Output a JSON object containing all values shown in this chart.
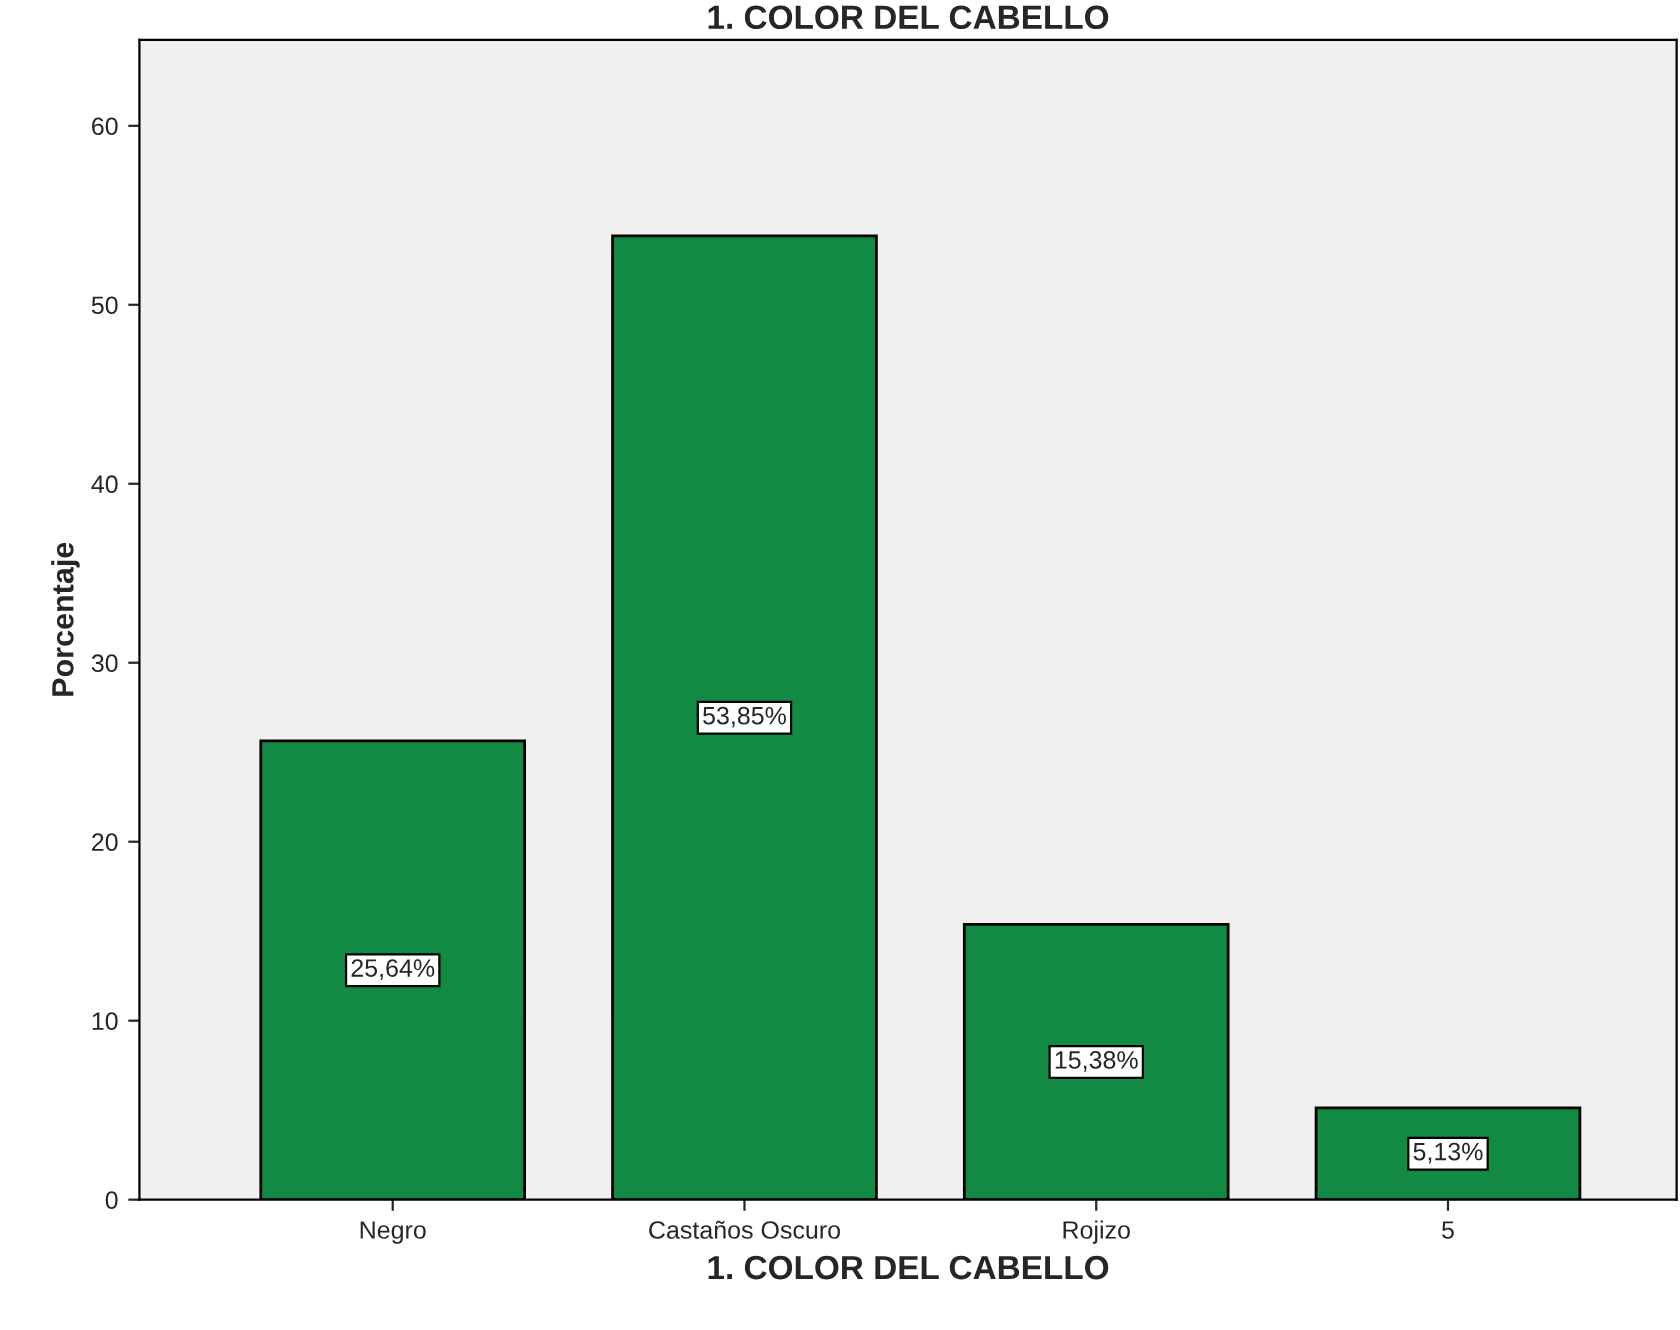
{
  "chart_data": {
    "type": "bar",
    "title": "1. COLOR DEL CABELLO",
    "xlabel": "1. COLOR DEL CABELLO",
    "ylabel": "Porcentaje",
    "categories": [
      "Negro",
      "Castaños Oscuro",
      "Rojizo",
      "5"
    ],
    "values": [
      25.64,
      53.85,
      15.38,
      5.13
    ],
    "value_labels": [
      "25,64%",
      "53,85%",
      "15,38%",
      "5,13%"
    ],
    "color": "#138a43",
    "ylim": [
      0,
      64.8
    ],
    "yticks": [
      0,
      10,
      20,
      30,
      40,
      50,
      60
    ],
    "grid": false
  }
}
